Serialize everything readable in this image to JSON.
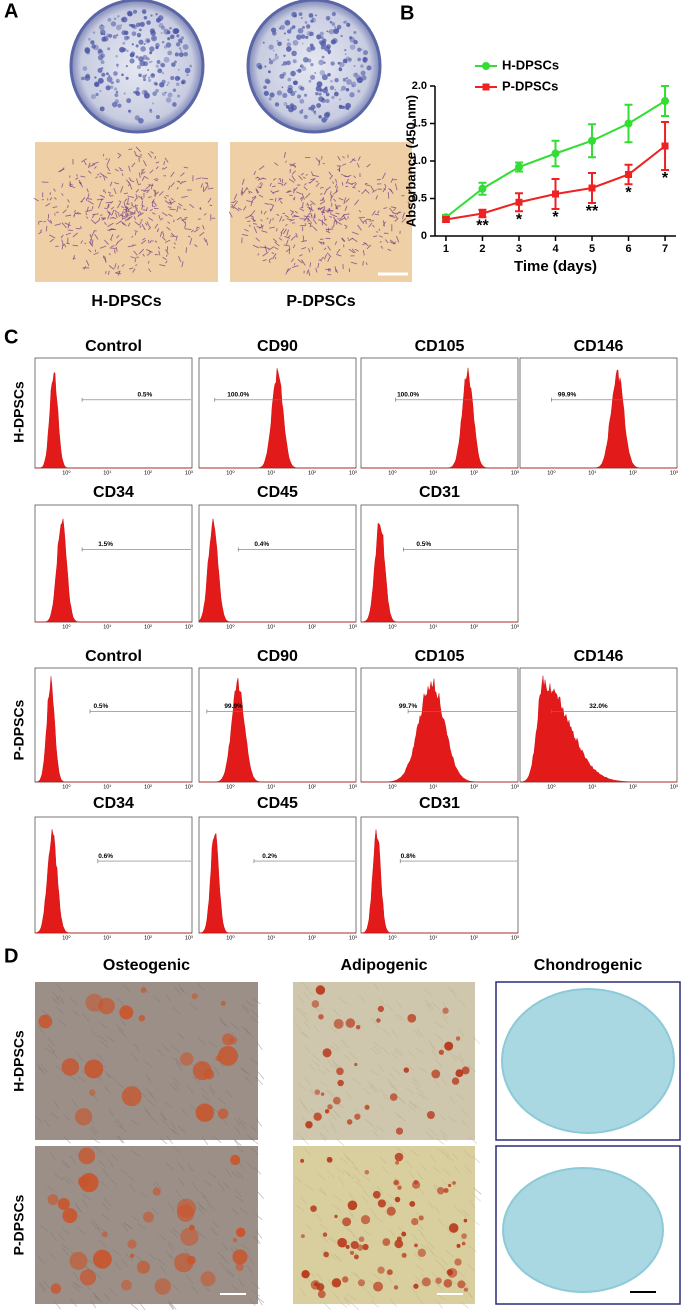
{
  "panel_a": {
    "label": "A",
    "groups": [
      "H-DPSCs",
      "P-DPSCs"
    ]
  },
  "chart_data": {
    "label": "B",
    "type": "line",
    "x_label": "Time (days)",
    "y_label": "Absorbance (450 nm)",
    "x": [
      1,
      2,
      3,
      4,
      5,
      6,
      7
    ],
    "xlim": [
      0.7,
      7.3
    ],
    "xticks": [
      1,
      2,
      3,
      4,
      5,
      6,
      7
    ],
    "ylim": [
      0,
      2
    ],
    "yticks": [
      0,
      0.5,
      {
        "value": 1,
        "label": "1.0"
      },
      1.5,
      {
        "value": 2,
        "label": "2.0"
      }
    ],
    "legend": "upper left",
    "series": [
      {
        "name": "H-DPSCs",
        "color": "#33dd33",
        "marker": "circle",
        "values": [
          0.25,
          0.63,
          0.92,
          1.1,
          1.27,
          1.5,
          1.8
        ],
        "errors": [
          0.03,
          0.08,
          0.06,
          0.17,
          0.22,
          0.25,
          0.2
        ]
      },
      {
        "name": "P-DPSCs",
        "color": "#ee2222",
        "marker": "square",
        "values": [
          0.22,
          0.3,
          0.45,
          0.56,
          0.64,
          0.82,
          1.2
        ],
        "errors": [
          0.03,
          0.05,
          0.12,
          0.2,
          0.2,
          0.13,
          0.32
        ]
      }
    ],
    "annotations": [
      {
        "x": 2,
        "text": "**"
      },
      {
        "x": 3,
        "text": "*"
      },
      {
        "x": 4,
        "text": "*"
      },
      {
        "x": 5,
        "text": "**"
      },
      {
        "x": 6,
        "text": "*"
      },
      {
        "x": 7,
        "text": "*"
      }
    ]
  },
  "panel_c": {
    "label": "C",
    "axis_ticks": [
      "10⁰",
      "10¹",
      "10²",
      "10³"
    ],
    "groups": [
      {
        "row_label": "H-DPSCs",
        "plots": [
          {
            "marker": "Control",
            "percent": "0.5%"
          },
          {
            "marker": "CD90",
            "percent": "100.0%"
          },
          {
            "marker": "CD105",
            "percent": "100.0%"
          },
          {
            "marker": "CD146",
            "percent": "99.9%"
          },
          {
            "marker": "CD34",
            "percent": "1.5%"
          },
          {
            "marker": "CD45",
            "percent": "0.4%"
          },
          {
            "marker": "CD31",
            "percent": "0.5%"
          }
        ]
      },
      {
        "row_label": "P-DPSCs",
        "plots": [
          {
            "marker": "Control",
            "percent": "0.5%"
          },
          {
            "marker": "CD90",
            "percent": "99.9%"
          },
          {
            "marker": "CD105",
            "percent": "99.7%"
          },
          {
            "marker": "CD146",
            "percent": "32.0%"
          },
          {
            "marker": "CD34",
            "percent": "0.6%"
          },
          {
            "marker": "CD45",
            "percent": "0.2%"
          },
          {
            "marker": "CD31",
            "percent": "0.8%"
          }
        ]
      }
    ]
  },
  "panel_d": {
    "label": "D",
    "columns": [
      "Osteogenic",
      "Adipogenic",
      "Chondrogenic"
    ],
    "rows": [
      "H-DPSCs",
      "P-DPSCs"
    ]
  }
}
